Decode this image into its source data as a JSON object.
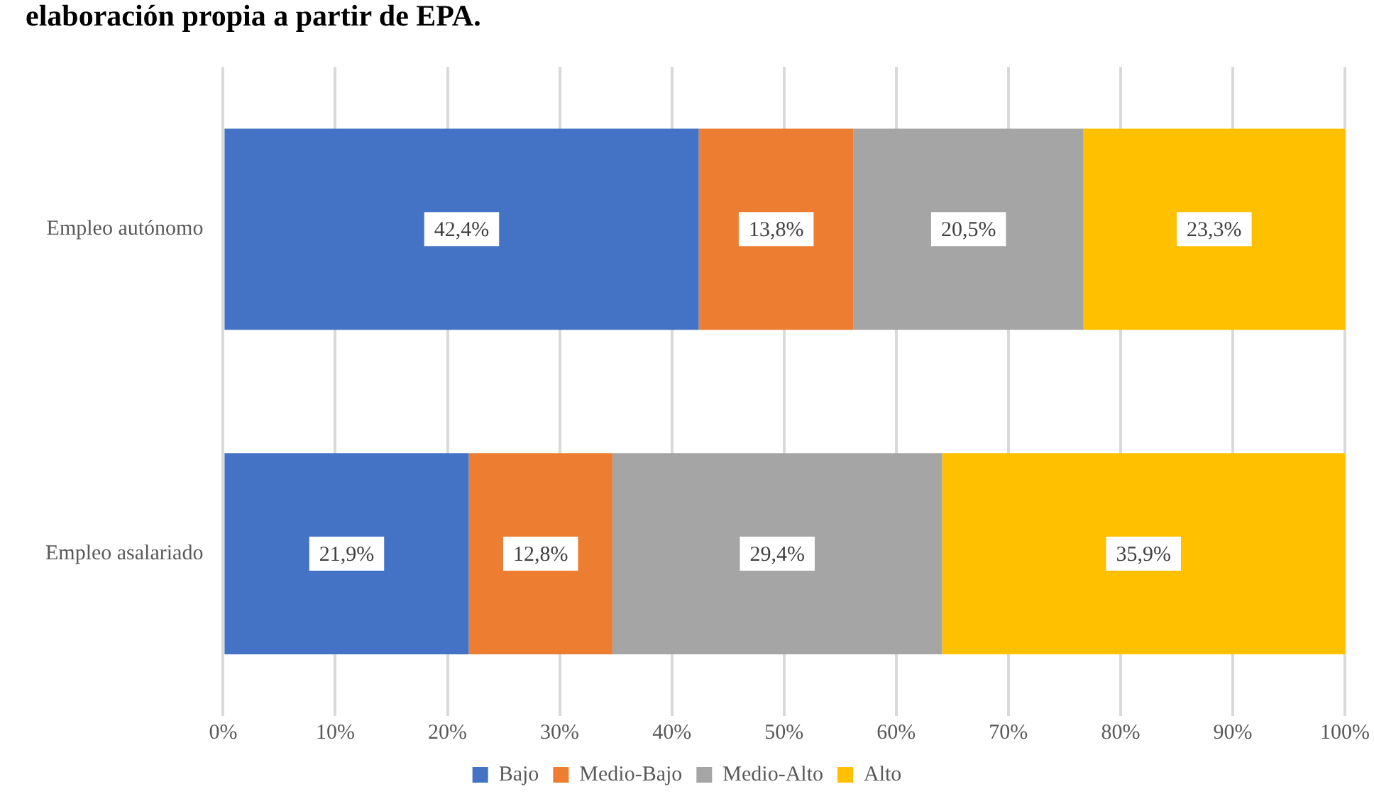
{
  "chart_data": {
    "type": "bar",
    "orientation": "horizontal",
    "stacked": true,
    "title": "elaboración propia a partir de EPA.",
    "categories": [
      "Empleo autónomo",
      "Empleo asalariado"
    ],
    "series": [
      {
        "name": "Bajo",
        "color": "#4472c4",
        "values": [
          42.4,
          21.9
        ],
        "value_labels": [
          "42,4%",
          "21,9%"
        ]
      },
      {
        "name": "Medio-Bajo",
        "color": "#ed7d31",
        "values": [
          13.8,
          12.8
        ],
        "value_labels": [
          "13,8%",
          "12,8%"
        ]
      },
      {
        "name": "Medio-Alto",
        "color": "#a5a5a5",
        "values": [
          20.5,
          29.4
        ],
        "value_labels": [
          "20,5%",
          "29,4%"
        ]
      },
      {
        "name": "Alto",
        "color": "#ffc000",
        "values": [
          23.3,
          35.9
        ],
        "value_labels": [
          "23,3%",
          "35,9%"
        ]
      }
    ],
    "xlim": [
      0,
      100
    ],
    "xticks": [
      {
        "value": 0,
        "label": "0%"
      },
      {
        "value": 10,
        "label": "10%"
      },
      {
        "value": 20,
        "label": "20%"
      },
      {
        "value": 30,
        "label": "30%"
      },
      {
        "value": 40,
        "label": "40%"
      },
      {
        "value": 50,
        "label": "50%"
      },
      {
        "value": 60,
        "label": "60%"
      },
      {
        "value": 70,
        "label": "70%"
      },
      {
        "value": 80,
        "label": "80%"
      },
      {
        "value": 90,
        "label": "90%"
      },
      {
        "value": 100,
        "label": "100%"
      }
    ],
    "grid": "x",
    "legend": "bottom"
  }
}
